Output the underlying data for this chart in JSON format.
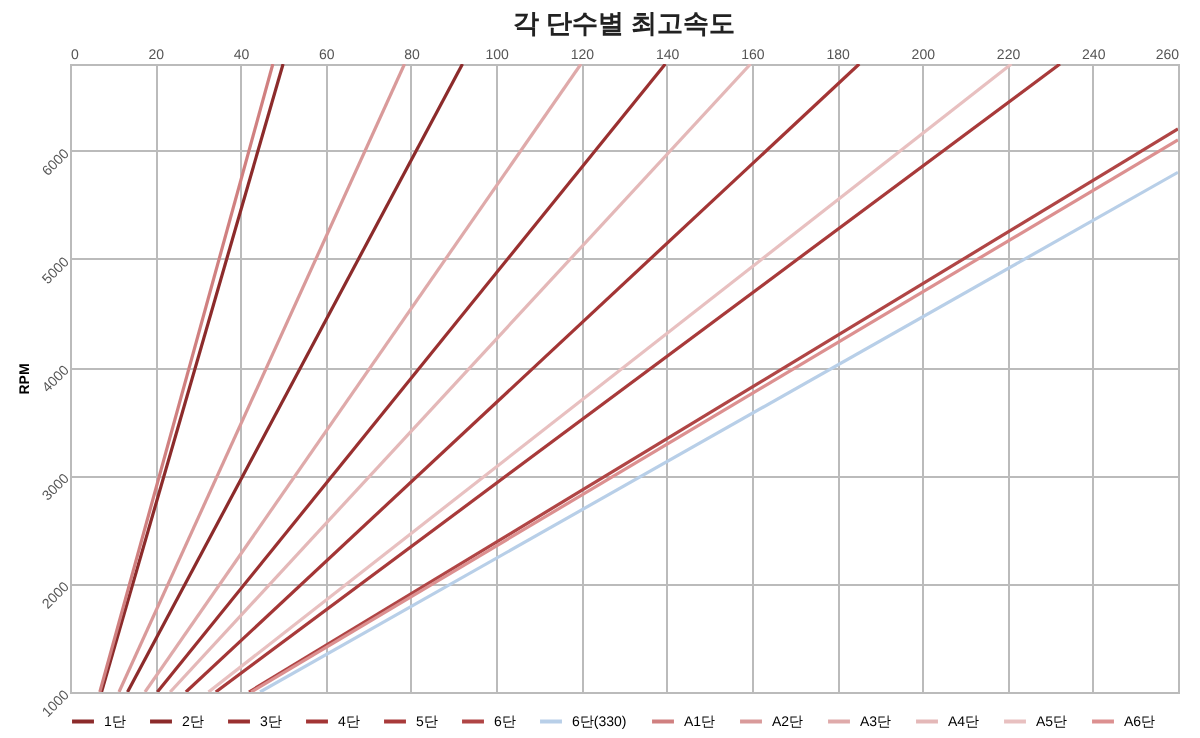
{
  "chart_data": {
    "type": "line",
    "title": "각 단수별 최고속도",
    "ylabel": "RPM",
    "xlim": [
      0,
      260
    ],
    "xticks": [
      0,
      20,
      40,
      60,
      80,
      100,
      120,
      140,
      160,
      180,
      200,
      220,
      240,
      260
    ],
    "ylim": [
      1000,
      6800
    ],
    "yticks": [
      1000,
      2000,
      3000,
      4000,
      5000,
      6000
    ],
    "grid": true,
    "legend": "bottom",
    "marker": "none",
    "line_style": "solid",
    "series": [
      {
        "name": "1단",
        "color": "#8c2b2b",
        "x": [
          7.4,
          50
        ],
        "values": [
          1000,
          6800
        ]
      },
      {
        "name": "2단",
        "color": "#8c2b2b",
        "x": [
          13.5,
          92.1
        ],
        "values": [
          1000,
          6800
        ]
      },
      {
        "name": "3단",
        "color": "#9a3030",
        "x": [
          20.5,
          139.7
        ],
        "values": [
          1000,
          6800
        ]
      },
      {
        "name": "4단",
        "color": "#a33535",
        "x": [
          27.2,
          185.2
        ],
        "values": [
          1000,
          6800
        ]
      },
      {
        "name": "5단",
        "color": "#a83a3a",
        "x": [
          34.2,
          232.3
        ],
        "values": [
          1000,
          6800
        ]
      },
      {
        "name": "6단",
        "color": "#b04545",
        "x": [
          42,
          260
        ],
        "values": [
          1000,
          6200
        ]
      },
      {
        "name": "6단(330)",
        "color": "#b8cfe8",
        "x": [
          44.6,
          260
        ],
        "values": [
          1000,
          5800
        ]
      },
      {
        "name": "A1단",
        "color": "#d08080",
        "x": [
          7,
          47.6
        ],
        "values": [
          1000,
          6800
        ]
      },
      {
        "name": "A2단",
        "color": "#d99a9a",
        "x": [
          11.5,
          78.5
        ],
        "values": [
          1000,
          6800
        ]
      },
      {
        "name": "A3단",
        "color": "#dfaaaa",
        "x": [
          17.6,
          119.9
        ],
        "values": [
          1000,
          6800
        ]
      },
      {
        "name": "A4단",
        "color": "#e4b8b8",
        "x": [
          23.5,
          159.7
        ],
        "values": [
          1000,
          6800
        ]
      },
      {
        "name": "A5단",
        "color": "#e8c0c0",
        "x": [
          32.5,
          220.9
        ],
        "values": [
          1000,
          6800
        ]
      },
      {
        "name": "A6단",
        "color": "#dc9090",
        "x": [
          42.5,
          260
        ],
        "values": [
          1000,
          6100
        ]
      }
    ]
  }
}
